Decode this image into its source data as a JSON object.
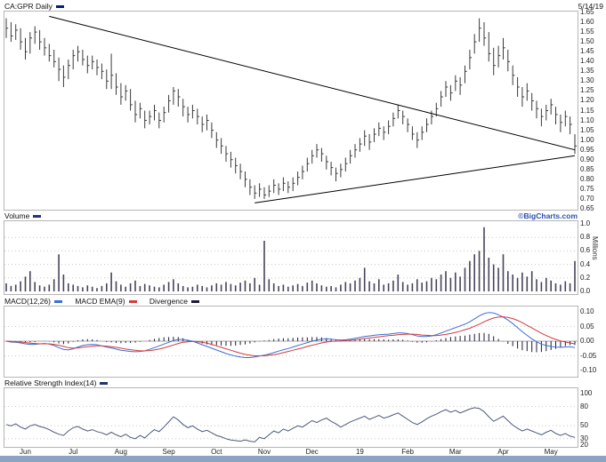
{
  "header": {
    "symbol_label": "CA:GPR Daily",
    "date": "5/14/19"
  },
  "watermark": "©BigCharts.com",
  "colors": {
    "price_bars": "#3a3a3a",
    "price_marker": "#002266",
    "trendline": "#000000",
    "volume_bars": "#45455a",
    "volume_marker": "#223388",
    "macd_line": "#3b6fd4",
    "macd_signal": "#d43b3b",
    "macd_histogram": "#1a1a3a",
    "rsi_line": "#4a5a7c",
    "rsi_marker": "#223366",
    "watermark_color": "#2a4fae",
    "bottom_bar": "#8da3c3",
    "grid": "#c8c8c8",
    "zero_line": "#a8a8a8",
    "panel_border": "#b5b5b5",
    "text": "#111111"
  },
  "panels": {
    "price": {
      "ticks": [
        {
          "label": "1.65",
          "v": 1.65
        },
        {
          "label": "1.60",
          "v": 1.6
        },
        {
          "label": "1.55",
          "v": 1.55
        },
        {
          "label": "1.50",
          "v": 1.5
        },
        {
          "label": "1.45",
          "v": 1.45
        },
        {
          "label": "1.40",
          "v": 1.4
        },
        {
          "label": "1.35",
          "v": 1.35
        },
        {
          "label": "1.30",
          "v": 1.3
        },
        {
          "label": "1.25",
          "v": 1.25
        },
        {
          "label": "1.20",
          "v": 1.2
        },
        {
          "label": "1.15",
          "v": 1.15
        },
        {
          "label": "1.10",
          "v": 1.1
        },
        {
          "label": "1.05",
          "v": 1.05
        },
        {
          "label": "1.00",
          "v": 1.0
        },
        {
          "label": "0.95",
          "v": 0.95
        },
        {
          "label": "0.90",
          "v": 0.9
        },
        {
          "label": "0.85",
          "v": 0.85
        },
        {
          "label": "0.80",
          "v": 0.8
        },
        {
          "label": "0.75",
          "v": 0.75
        },
        {
          "label": "0.70",
          "v": 0.7
        },
        {
          "label": "0.65",
          "v": 0.65
        }
      ]
    },
    "volume": {
      "label": "Volume",
      "unit_label": "Millions",
      "ticks": [
        {
          "label": "1.0",
          "v": 1.0
        },
        {
          "label": "0.8",
          "v": 0.8
        },
        {
          "label": "0.6",
          "v": 0.6
        },
        {
          "label": "0.4",
          "v": 0.4
        },
        {
          "label": "0.2",
          "v": 0.2
        },
        {
          "label": "0.0",
          "v": 0.0
        }
      ]
    },
    "macd": {
      "items": [
        {
          "text": "MACD(12,26)"
        },
        {
          "text": "MACD EMA(9)"
        },
        {
          "text": "Divergence"
        }
      ],
      "ticks": [
        {
          "label": "0.10",
          "v": 0.1
        },
        {
          "label": "0.05",
          "v": 0.05
        },
        {
          "label": "0.00",
          "v": 0.0
        },
        {
          "label": "-0.05",
          "v": -0.05
        },
        {
          "label": "-0.10",
          "v": -0.1
        }
      ]
    },
    "rsi": {
      "label": "Relative Strength Index(14)",
      "ticks": [
        {
          "label": "100",
          "v": 100
        },
        {
          "label": "80",
          "v": 80
        },
        {
          "label": "50",
          "v": 50
        },
        {
          "label": "30",
          "v": 30
        },
        {
          "label": "20",
          "v": 20
        }
      ]
    }
  },
  "chart_data": {
    "type": "ohlc-multi-panel",
    "symbol": "CA:GPR",
    "interval": "Daily",
    "as_of": "5/14/19",
    "months": [
      "Jun",
      "Jul",
      "Aug",
      "Sep",
      "Oct",
      "Nov",
      "Dec",
      "19",
      "Feb",
      "Mar",
      "Apr",
      "May"
    ],
    "price": {
      "ylim": [
        0.65,
        1.65
      ],
      "ohlc": [
        [
          1.62,
          1.52,
          1.57
        ],
        [
          1.6,
          1.5,
          1.53
        ],
        [
          1.59,
          1.51,
          1.56
        ],
        [
          1.57,
          1.46,
          1.5
        ],
        [
          1.52,
          1.41,
          1.45
        ],
        [
          1.55,
          1.44,
          1.52
        ],
        [
          1.58,
          1.49,
          1.55
        ],
        [
          1.56,
          1.46,
          1.5
        ],
        [
          1.52,
          1.43,
          1.47
        ],
        [
          1.49,
          1.4,
          1.43
        ],
        [
          1.46,
          1.37,
          1.4
        ],
        [
          1.42,
          1.3,
          1.36
        ],
        [
          1.38,
          1.27,
          1.32
        ],
        [
          1.41,
          1.31,
          1.38
        ],
        [
          1.46,
          1.36,
          1.43
        ],
        [
          1.48,
          1.4,
          1.45
        ],
        [
          1.46,
          1.38,
          1.41
        ],
        [
          1.43,
          1.34,
          1.38
        ],
        [
          1.43,
          1.36,
          1.4
        ],
        [
          1.41,
          1.33,
          1.37
        ],
        [
          1.39,
          1.31,
          1.35
        ],
        [
          1.36,
          1.26,
          1.3
        ],
        [
          1.44,
          1.26,
          1.33
        ],
        [
          1.34,
          1.23,
          1.27
        ],
        [
          1.29,
          1.18,
          1.22
        ],
        [
          1.28,
          1.2,
          1.25
        ],
        [
          1.26,
          1.15,
          1.18
        ],
        [
          1.2,
          1.09,
          1.13
        ],
        [
          1.19,
          1.11,
          1.16
        ],
        [
          1.15,
          1.06,
          1.1
        ],
        [
          1.15,
          1.08,
          1.12
        ],
        [
          1.18,
          1.1,
          1.15
        ],
        [
          1.14,
          1.06,
          1.1
        ],
        [
          1.17,
          1.09,
          1.14
        ],
        [
          1.23,
          1.14,
          1.2
        ],
        [
          1.27,
          1.18,
          1.25
        ],
        [
          1.26,
          1.17,
          1.22
        ],
        [
          1.21,
          1.12,
          1.17
        ],
        [
          1.17,
          1.09,
          1.13
        ],
        [
          1.18,
          1.11,
          1.15
        ],
        [
          1.16,
          1.08,
          1.12
        ],
        [
          1.12,
          1.04,
          1.08
        ],
        [
          1.13,
          1.05,
          1.1
        ],
        [
          1.09,
          1.01,
          1.05
        ],
        [
          1.04,
          0.96,
          1.0
        ],
        [
          1.01,
          0.93,
          0.97
        ],
        [
          0.97,
          0.89,
          0.93
        ],
        [
          0.94,
          0.86,
          0.9
        ],
        [
          0.91,
          0.83,
          0.87
        ],
        [
          0.88,
          0.8,
          0.84
        ],
        [
          0.84,
          0.76,
          0.8
        ],
        [
          0.8,
          0.72,
          0.76
        ],
        [
          0.77,
          0.7,
          0.73
        ],
        [
          0.78,
          0.71,
          0.75
        ],
        [
          0.76,
          0.7,
          0.72
        ],
        [
          0.77,
          0.71,
          0.74
        ],
        [
          0.8,
          0.73,
          0.77
        ],
        [
          0.78,
          0.72,
          0.75
        ],
        [
          0.81,
          0.74,
          0.78
        ],
        [
          0.79,
          0.73,
          0.76
        ],
        [
          0.81,
          0.74,
          0.78
        ],
        [
          0.84,
          0.77,
          0.81
        ],
        [
          0.87,
          0.8,
          0.84
        ],
        [
          0.91,
          0.84,
          0.88
        ],
        [
          0.95,
          0.88,
          0.92
        ],
        [
          0.98,
          0.91,
          0.95
        ],
        [
          0.96,
          0.89,
          0.93
        ],
        [
          0.92,
          0.85,
          0.89
        ],
        [
          0.89,
          0.82,
          0.86
        ],
        [
          0.86,
          0.79,
          0.83
        ],
        [
          0.88,
          0.81,
          0.85
        ],
        [
          0.91,
          0.84,
          0.88
        ],
        [
          0.95,
          0.88,
          0.92
        ],
        [
          0.98,
          0.91,
          0.95
        ],
        [
          1.01,
          0.94,
          0.98
        ],
        [
          1.05,
          0.97,
          1.02
        ],
        [
          1.03,
          0.95,
          0.99
        ],
        [
          1.06,
          0.99,
          1.03
        ],
        [
          1.09,
          1.02,
          1.06
        ],
        [
          1.07,
          1.0,
          1.04
        ],
        [
          1.1,
          1.03,
          1.07
        ],
        [
          1.14,
          1.07,
          1.11
        ],
        [
          1.18,
          1.11,
          1.15
        ],
        [
          1.15,
          1.08,
          1.12
        ],
        [
          1.11,
          1.04,
          1.08
        ],
        [
          1.07,
          1.0,
          1.03
        ],
        [
          1.04,
          0.96,
          1.0
        ],
        [
          1.07,
          1.0,
          1.04
        ],
        [
          1.11,
          1.04,
          1.08
        ],
        [
          1.15,
          1.08,
          1.12
        ],
        [
          1.19,
          1.12,
          1.16
        ],
        [
          1.25,
          1.17,
          1.22
        ],
        [
          1.3,
          1.22,
          1.27
        ],
        [
          1.28,
          1.2,
          1.24
        ],
        [
          1.33,
          1.25,
          1.3
        ],
        [
          1.32,
          1.23,
          1.28
        ],
        [
          1.38,
          1.29,
          1.35
        ],
        [
          1.46,
          1.36,
          1.42
        ],
        [
          1.54,
          1.44,
          1.5
        ],
        [
          1.62,
          1.5,
          1.57
        ],
        [
          1.6,
          1.48,
          1.52
        ],
        [
          1.55,
          1.4,
          1.44
        ],
        [
          1.47,
          1.33,
          1.38
        ],
        [
          1.48,
          1.37,
          1.43
        ],
        [
          1.52,
          1.41,
          1.47
        ],
        [
          1.46,
          1.35,
          1.4
        ],
        [
          1.38,
          1.28,
          1.33
        ],
        [
          1.32,
          1.22,
          1.27
        ],
        [
          1.27,
          1.17,
          1.22
        ],
        [
          1.29,
          1.2,
          1.25
        ],
        [
          1.24,
          1.15,
          1.2
        ],
        [
          1.2,
          1.11,
          1.16
        ],
        [
          1.16,
          1.07,
          1.12
        ],
        [
          1.18,
          1.1,
          1.15
        ],
        [
          1.21,
          1.13,
          1.18
        ],
        [
          1.17,
          1.08,
          1.13
        ],
        [
          1.13,
          1.04,
          1.09
        ],
        [
          1.15,
          1.07,
          1.12
        ],
        [
          1.12,
          1.03,
          1.08
        ],
        [
          1.03,
          0.93,
          0.97
        ]
      ]
    },
    "trendlines": [
      {
        "from_index": 9,
        "from_price": 1.63,
        "to_index": 119,
        "to_price": 0.95
      },
      {
        "from_index": 52,
        "from_price": 0.68,
        "to_index": 119,
        "to_price": 0.92
      }
    ],
    "volume": {
      "ylim": [
        0,
        1.0
      ],
      "unit": "millions",
      "values": [
        0.12,
        0.08,
        0.1,
        0.15,
        0.22,
        0.3,
        0.14,
        0.09,
        0.07,
        0.1,
        0.18,
        0.55,
        0.25,
        0.12,
        0.1,
        0.08,
        0.06,
        0.09,
        0.07,
        0.05,
        0.08,
        0.12,
        0.28,
        0.15,
        0.1,
        0.07,
        0.12,
        0.16,
        0.08,
        0.11,
        0.09,
        0.07,
        0.06,
        0.1,
        0.14,
        0.18,
        0.12,
        0.08,
        0.06,
        0.07,
        0.1,
        0.08,
        0.06,
        0.09,
        0.12,
        0.1,
        0.14,
        0.11,
        0.09,
        0.13,
        0.16,
        0.12,
        0.2,
        0.1,
        0.75,
        0.18,
        0.12,
        0.08,
        0.1,
        0.07,
        0.09,
        0.11,
        0.08,
        0.13,
        0.16,
        0.12,
        0.09,
        0.07,
        0.08,
        0.06,
        0.1,
        0.14,
        0.12,
        0.16,
        0.2,
        0.35,
        0.15,
        0.12,
        0.18,
        0.1,
        0.12,
        0.16,
        0.25,
        0.14,
        0.1,
        0.12,
        0.18,
        0.13,
        0.15,
        0.2,
        0.18,
        0.25,
        0.3,
        0.2,
        0.28,
        0.22,
        0.35,
        0.45,
        0.55,
        0.6,
        0.95,
        0.5,
        0.4,
        0.35,
        0.55,
        0.3,
        0.25,
        0.2,
        0.28,
        0.22,
        0.3,
        0.18,
        0.14,
        0.2,
        0.16,
        0.12,
        0.1,
        0.15,
        0.12,
        0.45
      ]
    },
    "macd": {
      "ylim": [
        -0.1,
        0.1
      ],
      "macd": [
        0.0,
        -0.003,
        -0.004,
        -0.006,
        -0.009,
        -0.011,
        -0.011,
        -0.009,
        -0.008,
        -0.01,
        -0.015,
        -0.022,
        -0.028,
        -0.03,
        -0.026,
        -0.02,
        -0.015,
        -0.012,
        -0.011,
        -0.012,
        -0.016,
        -0.02,
        -0.023,
        -0.027,
        -0.031,
        -0.033,
        -0.035,
        -0.036,
        -0.035,
        -0.033,
        -0.028,
        -0.022,
        -0.016,
        -0.01,
        -0.004,
        0.002,
        0.006,
        0.006,
        0.003,
        0.0,
        -0.006,
        -0.012,
        -0.018,
        -0.024,
        -0.03,
        -0.036,
        -0.042,
        -0.047,
        -0.051,
        -0.054,
        -0.056,
        -0.056,
        -0.054,
        -0.051,
        -0.048,
        -0.044,
        -0.039,
        -0.034,
        -0.029,
        -0.025,
        -0.02,
        -0.015,
        -0.01,
        -0.005,
        0.0,
        0.004,
        0.007,
        0.008,
        0.007,
        0.005,
        0.004,
        0.005,
        0.007,
        0.01,
        0.013,
        0.016,
        0.018,
        0.02,
        0.022,
        0.023,
        0.024,
        0.026,
        0.028,
        0.028,
        0.026,
        0.022,
        0.018,
        0.016,
        0.016,
        0.018,
        0.022,
        0.028,
        0.034,
        0.04,
        0.046,
        0.052,
        0.058,
        0.066,
        0.076,
        0.086,
        0.094,
        0.098,
        0.096,
        0.09,
        0.082,
        0.072,
        0.06,
        0.046,
        0.032,
        0.02,
        0.008,
        -0.002,
        -0.01,
        -0.015,
        -0.018,
        -0.02,
        -0.021,
        -0.02,
        -0.019,
        -0.022
      ],
      "signal": [
        0.0,
        -0.001,
        -0.002,
        -0.003,
        -0.005,
        -0.007,
        -0.008,
        -0.009,
        -0.009,
        -0.009,
        -0.011,
        -0.014,
        -0.018,
        -0.022,
        -0.024,
        -0.023,
        -0.021,
        -0.019,
        -0.017,
        -0.016,
        -0.016,
        -0.017,
        -0.019,
        -0.021,
        -0.024,
        -0.027,
        -0.029,
        -0.031,
        -0.033,
        -0.033,
        -0.032,
        -0.03,
        -0.027,
        -0.023,
        -0.018,
        -0.013,
        -0.008,
        -0.004,
        -0.002,
        -0.001,
        -0.002,
        -0.004,
        -0.007,
        -0.011,
        -0.016,
        -0.021,
        -0.026,
        -0.031,
        -0.036,
        -0.041,
        -0.045,
        -0.048,
        -0.05,
        -0.05,
        -0.05,
        -0.048,
        -0.046,
        -0.043,
        -0.039,
        -0.035,
        -0.031,
        -0.027,
        -0.023,
        -0.018,
        -0.014,
        -0.01,
        -0.006,
        -0.003,
        -0.001,
        0.0,
        0.001,
        0.002,
        0.003,
        0.005,
        0.007,
        0.009,
        0.011,
        0.013,
        0.015,
        0.017,
        0.019,
        0.02,
        0.022,
        0.023,
        0.024,
        0.024,
        0.023,
        0.021,
        0.02,
        0.019,
        0.019,
        0.021,
        0.023,
        0.026,
        0.03,
        0.034,
        0.039,
        0.044,
        0.051,
        0.058,
        0.066,
        0.073,
        0.079,
        0.082,
        0.083,
        0.081,
        0.077,
        0.071,
        0.063,
        0.054,
        0.045,
        0.036,
        0.027,
        0.019,
        0.012,
        0.006,
        0.001,
        -0.003,
        -0.006,
        -0.009
      ]
    },
    "rsi": {
      "ylim": [
        20,
        100
      ],
      "values": [
        52,
        50,
        53,
        48,
        45,
        50,
        52,
        49,
        47,
        44,
        40,
        37,
        35,
        42,
        47,
        49,
        45,
        42,
        44,
        41,
        39,
        36,
        40,
        36,
        33,
        37,
        32,
        30,
        35,
        31,
        38,
        44,
        41,
        48,
        56,
        64,
        59,
        52,
        47,
        50,
        45,
        41,
        43,
        39,
        35,
        33,
        30,
        28,
        27,
        26,
        28,
        26,
        25,
        32,
        30,
        36,
        42,
        39,
        45,
        42,
        46,
        50,
        48,
        53,
        58,
        55,
        59,
        62,
        57,
        53,
        48,
        52,
        56,
        59,
        62,
        65,
        60,
        63,
        66,
        62,
        64,
        67,
        70,
        65,
        60,
        55,
        52,
        56,
        61,
        65,
        68,
        72,
        75,
        71,
        74,
        70,
        73,
        76,
        78,
        77,
        72,
        64,
        57,
        61,
        65,
        58,
        51,
        46,
        42,
        45,
        42,
        39,
        36,
        40,
        43,
        38,
        35,
        38,
        34,
        32
      ]
    }
  }
}
